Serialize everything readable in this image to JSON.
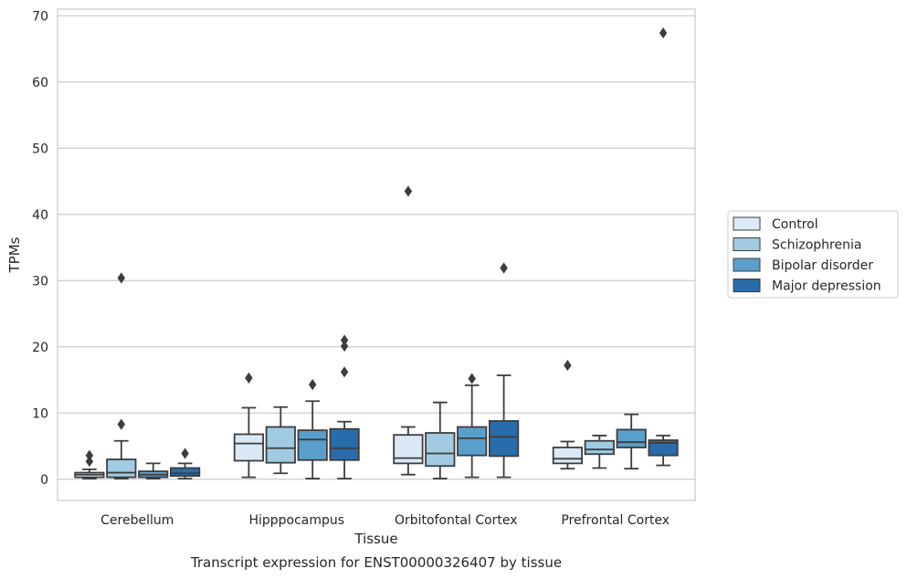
{
  "chart_data": {
    "type": "box",
    "caption": "Transcript expression for ENST00000326407 by tissue",
    "xlabel": "Tissue",
    "ylabel": "TPMs",
    "ylim": [
      -3.2,
      71
    ],
    "yticks": [
      0,
      10,
      20,
      30,
      40,
      50,
      60,
      70
    ],
    "grid": "horizontal",
    "legend_position": "right",
    "categories": [
      "Cerebellum",
      "Hipppocampus",
      "Orbitofontal Cortex",
      "Prefrontal Cortex"
    ],
    "series": [
      {
        "name": "Control",
        "color": "#dbe9f6",
        "boxes": [
          {
            "whisker_low": 0.1,
            "q1": 0.3,
            "median": 0.7,
            "q3": 1.0,
            "whisker_high": 1.5,
            "outliers": [
              2.7,
              3.6
            ]
          },
          {
            "whisker_low": 0.3,
            "q1": 2.8,
            "median": 5.4,
            "q3": 6.8,
            "whisker_high": 10.8,
            "outliers": [
              15.3
            ]
          },
          {
            "whisker_low": 0.7,
            "q1": 2.4,
            "median": 3.2,
            "q3": 6.7,
            "whisker_high": 7.9,
            "outliers": [
              43.5
            ]
          },
          {
            "whisker_low": 1.6,
            "q1": 2.4,
            "median": 3.1,
            "q3": 4.8,
            "whisker_high": 5.7,
            "outliers": [
              17.2
            ]
          }
        ]
      },
      {
        "name": "Schizophrenia",
        "color": "#a0cbe2",
        "boxes": [
          {
            "whisker_low": 0.1,
            "q1": 0.3,
            "median": 1.0,
            "q3": 3.0,
            "whisker_high": 5.8,
            "outliers": [
              8.3,
              30.4
            ]
          },
          {
            "whisker_low": 0.9,
            "q1": 2.5,
            "median": 4.7,
            "q3": 7.9,
            "whisker_high": 10.9,
            "outliers": []
          },
          {
            "whisker_low": 0.1,
            "q1": 2.0,
            "median": 3.9,
            "q3": 7.0,
            "whisker_high": 11.6,
            "outliers": []
          },
          {
            "whisker_low": 1.7,
            "q1": 3.8,
            "median": 4.5,
            "q3": 5.8,
            "whisker_high": 6.6,
            "outliers": []
          }
        ]
      },
      {
        "name": "Bipolar disorder",
        "color": "#5a9ecb",
        "boxes": [
          {
            "whisker_low": 0.1,
            "q1": 0.3,
            "median": 0.7,
            "q3": 1.2,
            "whisker_high": 2.4,
            "outliers": []
          },
          {
            "whisker_low": 0.1,
            "q1": 2.9,
            "median": 6.0,
            "q3": 7.4,
            "whisker_high": 11.8,
            "outliers": [
              14.3
            ]
          },
          {
            "whisker_low": 0.3,
            "q1": 3.6,
            "median": 6.2,
            "q3": 7.9,
            "whisker_high": 14.2,
            "outliers": [
              15.2
            ]
          },
          {
            "whisker_low": 1.6,
            "q1": 4.8,
            "median": 5.6,
            "q3": 7.5,
            "whisker_high": 9.8,
            "outliers": []
          }
        ]
      },
      {
        "name": "Major depression",
        "color": "#2a6ca9",
        "boxes": [
          {
            "whisker_low": 0.1,
            "q1": 0.5,
            "median": 0.9,
            "q3": 1.7,
            "whisker_high": 2.4,
            "outliers": [
              3.9
            ]
          },
          {
            "whisker_low": 0.1,
            "q1": 2.9,
            "median": 4.7,
            "q3": 7.6,
            "whisker_high": 8.7,
            "outliers": [
              16.2,
              20.1,
              21.0
            ]
          },
          {
            "whisker_low": 0.3,
            "q1": 3.5,
            "median": 6.4,
            "q3": 8.8,
            "whisker_high": 15.7,
            "outliers": [
              31.9
            ]
          },
          {
            "whisker_low": 2.1,
            "q1": 3.6,
            "median": 5.5,
            "q3": 5.9,
            "whisker_high": 6.6,
            "outliers": [
              67.4
            ]
          }
        ]
      }
    ]
  }
}
